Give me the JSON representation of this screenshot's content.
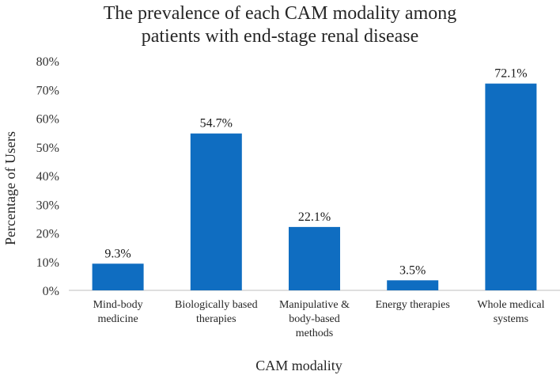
{
  "chart_data": {
    "type": "bar",
    "title": [
      "The prevalence of each CAM modality among",
      "patients with end-stage renal disease"
    ],
    "xlabel": "CAM modality",
    "ylabel": "Percentage of Users",
    "ylim": [
      0,
      80
    ],
    "yticks": [
      "0%",
      "10%",
      "20%",
      "30%",
      "40%",
      "50%",
      "60%",
      "70%",
      "80%"
    ],
    "grid": false,
    "bar_color": "#0f6dc1",
    "categories": [
      [
        "Mind-body",
        "medicine"
      ],
      [
        "Biologically based",
        "therapies"
      ],
      [
        "Manipulative &",
        "body-based",
        "methods"
      ],
      [
        "Energy therapies"
      ],
      [
        "Whole medical",
        "systems"
      ]
    ],
    "values": [
      9.3,
      54.7,
      22.1,
      3.5,
      72.1
    ],
    "data_labels": [
      "9.3%",
      "54.7%",
      "22.1%",
      "3.5%",
      "72.1%"
    ]
  }
}
